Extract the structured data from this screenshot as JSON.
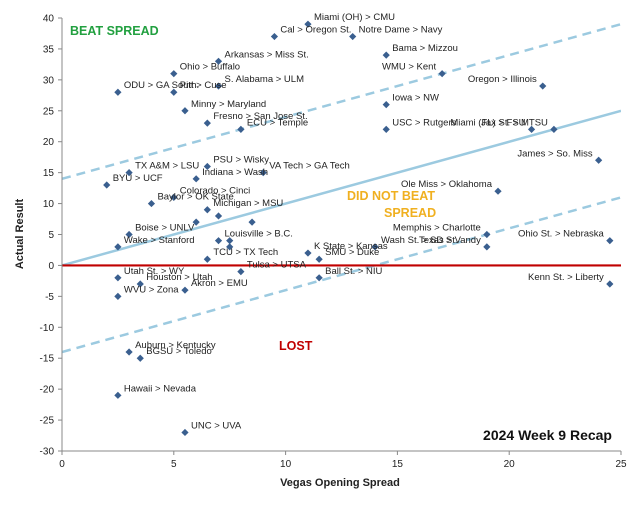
{
  "chart_data": {
    "type": "scatter",
    "xlabel": "Vegas Opening Spread",
    "ylabel": "Actual Result",
    "xlim": [
      0,
      25
    ],
    "ylim": [
      -30,
      40
    ],
    "xticks": [
      "0",
      "5",
      "10",
      "15",
      "20",
      "25"
    ],
    "yticks": [
      "-30",
      "-25",
      "-20",
      "-15",
      "-10",
      "-5",
      "0",
      "5",
      "10",
      "15",
      "20",
      "25",
      "30",
      "35",
      "40"
    ],
    "grid": false,
    "annotations": {
      "beat": "BEAT SPREAD",
      "didnot1": "DID NOT BEAT",
      "didnot2": "SPREAD",
      "lost": "LOST",
      "recap": "2024 Week 9 Recap"
    },
    "colors": {
      "point": "#3a5f8f",
      "spread_line": "#9ccae0",
      "zero_line": "#c00000",
      "beat": "#22a040",
      "didnot": "#f0b020",
      "lost": "#c00000"
    },
    "reference_lines": [
      {
        "kind": "spread",
        "style": "solid",
        "points": [
          [
            0,
            0
          ],
          [
            25,
            25
          ]
        ]
      },
      {
        "kind": "upper-band",
        "style": "dashed",
        "points": [
          [
            0,
            14
          ],
          [
            25,
            39
          ]
        ]
      },
      {
        "kind": "lower-band",
        "style": "dashed",
        "points": [
          [
            0,
            -14
          ],
          [
            25,
            11
          ]
        ]
      },
      {
        "kind": "zero",
        "style": "solid",
        "points": [
          [
            0,
            0
          ],
          [
            25,
            0
          ]
        ]
      }
    ],
    "points": [
      {
        "label": "Miami (OH) > CMU",
        "x": 11,
        "y": 39
      },
      {
        "label": "Cal > Oregon St.",
        "x": 9.5,
        "y": 37
      },
      {
        "label": "Notre Dame > Navy",
        "x": 13,
        "y": 37
      },
      {
        "label": "Ohio > Buffalo",
        "x": 5,
        "y": 31
      },
      {
        "label": "Arkansas > Miss St.",
        "x": 7,
        "y": 33
      },
      {
        "label": "Bama > Mizzou",
        "x": 14.5,
        "y": 34
      },
      {
        "label": "WMU > Kent",
        "x": 17,
        "y": 31
      },
      {
        "label": "Oregon > Illinois",
        "x": 21.5,
        "y": 29
      },
      {
        "label": "ODU > GA South.",
        "x": 2.5,
        "y": 28
      },
      {
        "label": "S. Alabama > ULM",
        "x": 7,
        "y": 29
      },
      {
        "label": "Pitt > Cuse",
        "x": 5,
        "y": 28
      },
      {
        "label": "Iowa > NW",
        "x": 14.5,
        "y": 26
      },
      {
        "label": "Miami (FL) > FSU",
        "x": 21,
        "y": 22
      },
      {
        "label": "Jax St. > MTSU",
        "x": 22,
        "y": 22
      },
      {
        "label": "Minny > Maryland",
        "x": 5.5,
        "y": 25
      },
      {
        "label": "Fresno > San Jose St.",
        "x": 6.5,
        "y": 23
      },
      {
        "label": "ECU > Temple",
        "x": 8,
        "y": 22
      },
      {
        "label": "USC > Rutgers",
        "x": 14.5,
        "y": 22
      },
      {
        "label": "James > So. Miss",
        "x": 24,
        "y": 17
      },
      {
        "label": "PSU > Wisky",
        "x": 6.5,
        "y": 16
      },
      {
        "label": "TX A&M > LSU",
        "x": 3,
        "y": 15
      },
      {
        "label": "VA Tech > GA Tech",
        "x": 9,
        "y": 15
      },
      {
        "label": "Indiana > Wash",
        "x": 6,
        "y": 14
      },
      {
        "label": "BYU > UCF",
        "x": 2,
        "y": 13
      },
      {
        "label": "Colorado > Cinci",
        "x": 5,
        "y": 11
      },
      {
        "label": "Ole Miss > Oklahoma",
        "x": 19.5,
        "y": 12
      },
      {
        "label": "Baylor > OK State",
        "x": 4,
        "y": 10
      },
      {
        "label": "Michigan > MSU",
        "x": 6.5,
        "y": 9
      },
      {
        "label": "Boise > UNLV",
        "x": 3,
        "y": 5
      },
      {
        "label": "Memphis > Charlotte",
        "x": 19,
        "y": 5
      },
      {
        "label": "Ohio St. > Nebraska",
        "x": 24.5,
        "y": 4
      },
      {
        "label": "Wake > Stanford",
        "x": 2.5,
        "y": 3
      },
      {
        "label": "TCU > TX Tech",
        "x": 6.5,
        "y": 1
      },
      {
        "label": "Louisville > B.C.",
        "x": 7,
        "y": 4
      },
      {
        "label": "K State > Kansas",
        "x": 11,
        "y": 2
      },
      {
        "label": "Wash St. > SD St.",
        "x": 14,
        "y": 3
      },
      {
        "label": "SMU > Duke",
        "x": 11.5,
        "y": 1
      },
      {
        "label": "Texas > Vandy",
        "x": 19,
        "y": 3
      },
      {
        "label": "Utah St. > WY",
        "x": 2.5,
        "y": -2
      },
      {
        "label": "Houston > Utah",
        "x": 3.5,
        "y": -3
      },
      {
        "label": "Tulsa > UTSA",
        "x": 8,
        "y": -1
      },
      {
        "label": "Ball St. > NIU",
        "x": 11.5,
        "y": -2
      },
      {
        "label": "Kenn St. > Liberty",
        "x": 24.5,
        "y": -3
      },
      {
        "label": "WVU > Zona",
        "x": 2.5,
        "y": -5
      },
      {
        "label": "Akron > EMU",
        "x": 5.5,
        "y": -4
      },
      {
        "label": "Auburn > Kentucky",
        "x": 3,
        "y": -14
      },
      {
        "label": "BGSU > Toledo",
        "x": 3.5,
        "y": -15
      },
      {
        "label": "Hawaii > Nevada",
        "x": 2.5,
        "y": -21
      },
      {
        "label": "UNC > UVA",
        "x": 5.5,
        "y": -27
      }
    ],
    "extra_points": [
      {
        "x": 6,
        "y": 7
      },
      {
        "x": 7,
        "y": 8
      },
      {
        "x": 7.5,
        "y": 4
      },
      {
        "x": 7.5,
        "y": 3
      },
      {
        "x": 8.5,
        "y": 7
      }
    ]
  }
}
